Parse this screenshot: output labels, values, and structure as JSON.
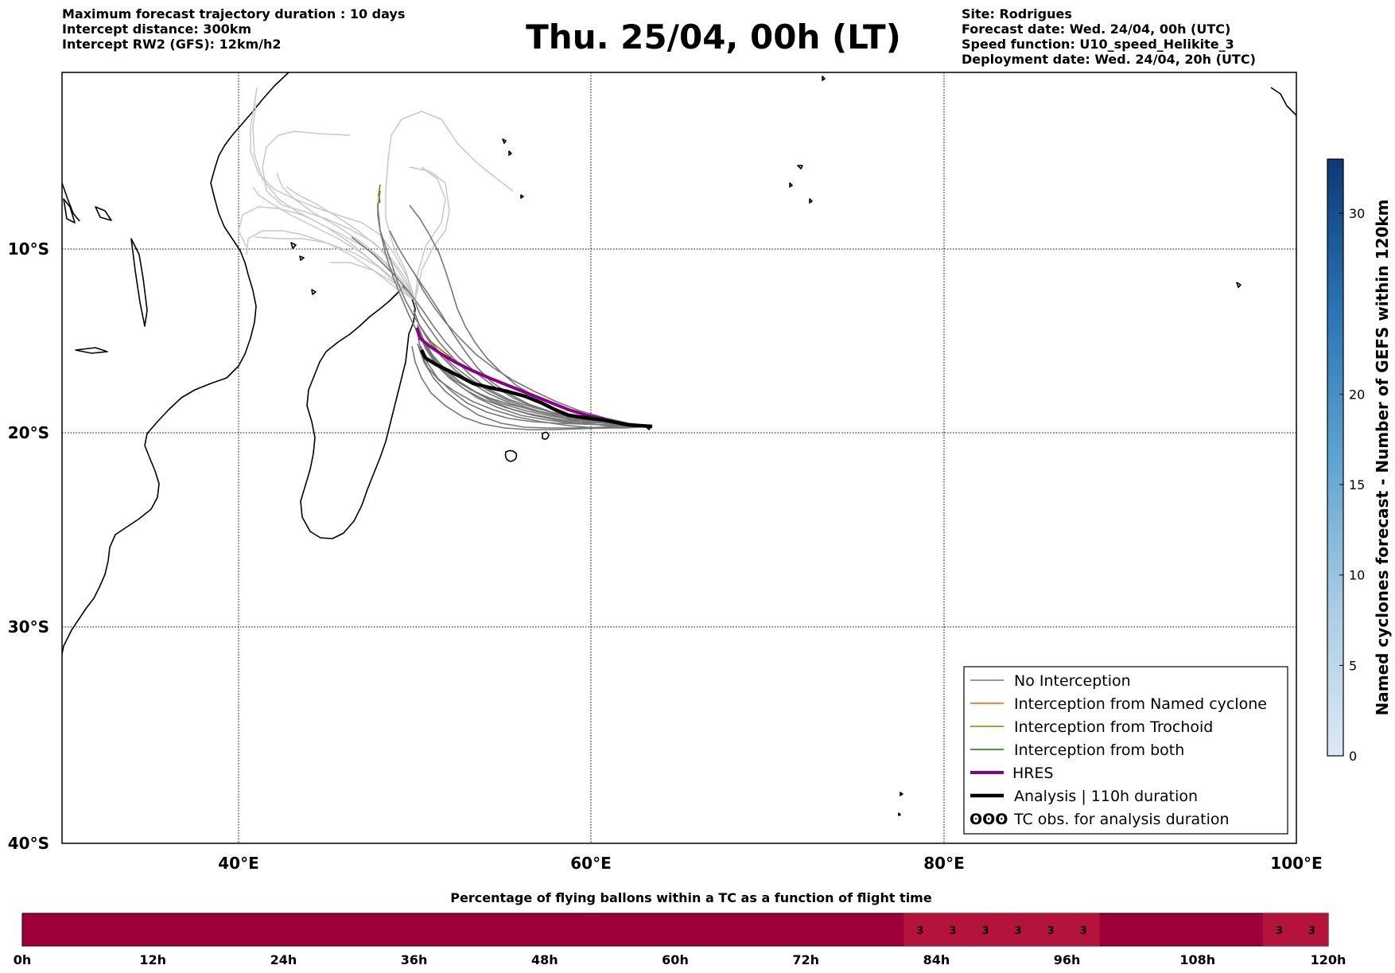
{
  "header_left": [
    "Maximum forecast trajectory duration : 10 days",
    "Intercept distance: 300km",
    "Intercept RW2 (GFS):  12km/h2"
  ],
  "title": "Thu. 25/04, 00h (LT)",
  "header_right": [
    "Site: Rodrigues",
    "Forecast date: Wed. 24/04, 00h (UTC)",
    "Speed function: U10_speed_Helikite_3",
    "Deployment date: Wed. 24/04, 20h (UTC)"
  ],
  "map": {
    "lon_range": [
      30,
      100
    ],
    "lat_range": [
      -40,
      0
    ],
    "x_ticks": [
      {
        "value": 40,
        "label": "40°E"
      },
      {
        "value": 60,
        "label": "60°E"
      },
      {
        "value": 80,
        "label": "80°E"
      },
      {
        "value": 100,
        "label": "100°E"
      }
    ],
    "y_ticks": [
      {
        "value": -10,
        "label": "10°S"
      },
      {
        "value": -20,
        "label": "20°S"
      },
      {
        "value": -30,
        "label": "30°S"
      },
      {
        "value": -40,
        "label": "40°S"
      }
    ],
    "colors": {
      "no_interception": "#777777",
      "named_cyclone": "#ff5a00",
      "trochoid": "#808000",
      "both": "#008000",
      "hres": "#8b008b",
      "analysis": "#000000"
    }
  },
  "legend": {
    "items": [
      {
        "label": "No Interception",
        "style": "no_interception"
      },
      {
        "label": "Interception from Named cyclone",
        "style": "named_cyclone"
      },
      {
        "label": "Interception from Trochoid",
        "style": "trochoid"
      },
      {
        "label": "Interception from both",
        "style": "both"
      },
      {
        "label": "HRES",
        "style": "hres"
      },
      {
        "label": "Analysis | 110h duration",
        "style": "analysis"
      },
      {
        "label": "TC obs. for analysis duration",
        "style": "tc_obs",
        "marker": "ʘʘʘ"
      }
    ]
  },
  "colorbar": {
    "label": "Named cyclones forecast - Number of GEFS within 120km",
    "range": [
      0,
      33
    ],
    "ticks": [
      0,
      5,
      10,
      15,
      20,
      30
    ]
  },
  "timebar": {
    "title": "Percentage of flying ballons within a TC as a function of flight time",
    "range_h": [
      0,
      120
    ],
    "ticks": [
      "0h",
      "12h",
      "24h",
      "36h",
      "48h",
      "60h",
      "72h",
      "84h",
      "96h",
      "108h",
      "120h"
    ],
    "cells_3pct_hours": [
      81,
      84,
      87,
      90,
      93,
      96,
      114,
      117
    ],
    "cell_value": "3",
    "base_color": "#a0003a",
    "cell_color": "#b4143c"
  }
}
